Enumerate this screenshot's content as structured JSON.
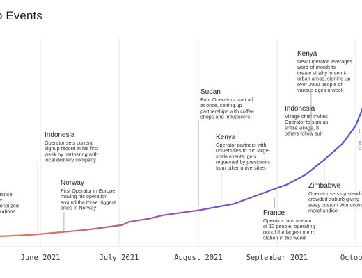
{
  "title": "o Events",
  "chart_data": {
    "type": "line",
    "title": "o Events",
    "x_axis": {
      "type": "date",
      "ticks": [
        "June 2021",
        "July 2021",
        "August 2021",
        "September 2021",
        "October"
      ],
      "tick_dates": [
        "2021-06-01",
        "2021-07-01",
        "2021-08-01",
        "2021-09-01",
        "2021-10-01"
      ]
    },
    "grid": true,
    "line_gradient": [
      "#f07a4a",
      "#8a4fb8",
      "#4f4fd8"
    ],
    "series": [
      {
        "x": [
          "2021-05-01",
          "2021-05-07",
          "2021-05-14",
          "2021-05-21",
          "2021-05-28",
          "2021-06-04",
          "2021-06-11",
          "2021-06-18",
          "2021-06-25",
          "2021-07-02",
          "2021-07-05",
          "2021-07-09",
          "2021-07-13",
          "2021-07-18",
          "2021-07-25",
          "2021-08-01",
          "2021-08-08",
          "2021-08-15",
          "2021-08-22",
          "2021-08-29",
          "2021-09-05",
          "2021-09-12",
          "2021-09-19",
          "2021-09-26",
          "2021-10-01",
          "2021-10-05"
        ],
        "y": [
          3,
          3,
          4,
          5,
          6,
          8,
          10,
          12,
          15,
          18,
          22,
          24,
          26,
          30,
          33,
          36,
          40,
          44,
          52,
          60,
          68,
          80,
          98,
          118,
          140,
          172
        ]
      }
    ],
    "annotations": [
      {
        "date": "2021-05-20",
        "title": "",
        "lines": [
          "stance",
          "ly-",
          "sonalized",
          "erations"
        ]
      },
      {
        "date": "2021-05-31",
        "title": "Indonesia",
        "lines": [
          "Operator sets current",
          "signup record in his first",
          "week by partnering with",
          "local delivery company"
        ]
      },
      {
        "date": "2021-06-10",
        "title": "Norway",
        "lines": [
          "First Operator in Europe,",
          "moving his operation",
          "around the three biggest",
          "cities in Norway"
        ]
      },
      {
        "date": "2021-08-01",
        "title": "Sudan",
        "lines": [
          "Four Operators start all",
          "at once, setting up",
          "partnerships with coffee",
          "shops and influencers"
        ]
      },
      {
        "date": "2021-08-10",
        "title": "Kenya",
        "lines": [
          "Operator partners with",
          "universities to run large-",
          "scale events, gets",
          "requested by presidents",
          "from other universities"
        ]
      },
      {
        "date": "2021-08-31",
        "title": "France",
        "lines": [
          "Operator runs a team",
          "of 12 people, operating",
          "out of the largest metro",
          "station in the world"
        ]
      },
      {
        "date": "2021-09-12",
        "title": "Indonesia",
        "lines": [
          "Village chief invites",
          "Operator to sign up",
          "entire village, 8",
          "others follow suit"
        ]
      },
      {
        "date": "2021-09-14",
        "title": "Kenya",
        "lines": [
          "New Operator leverages",
          "word-of-mouth to",
          "create virality in semi-",
          "urban areas, signing up",
          "over 2000 people of",
          "various ages a week"
        ]
      },
      {
        "date": "2021-09-19",
        "title": "Zimbabwe",
        "lines": [
          "Operator sets up stand in",
          "crowded suburb giving",
          "away custom Worldcoin",
          "merchandise"
        ]
      },
      {
        "date": "2021-10-01",
        "title": "",
        "lines": [
          "I",
          "c",
          "e",
          "c"
        ]
      }
    ]
  }
}
